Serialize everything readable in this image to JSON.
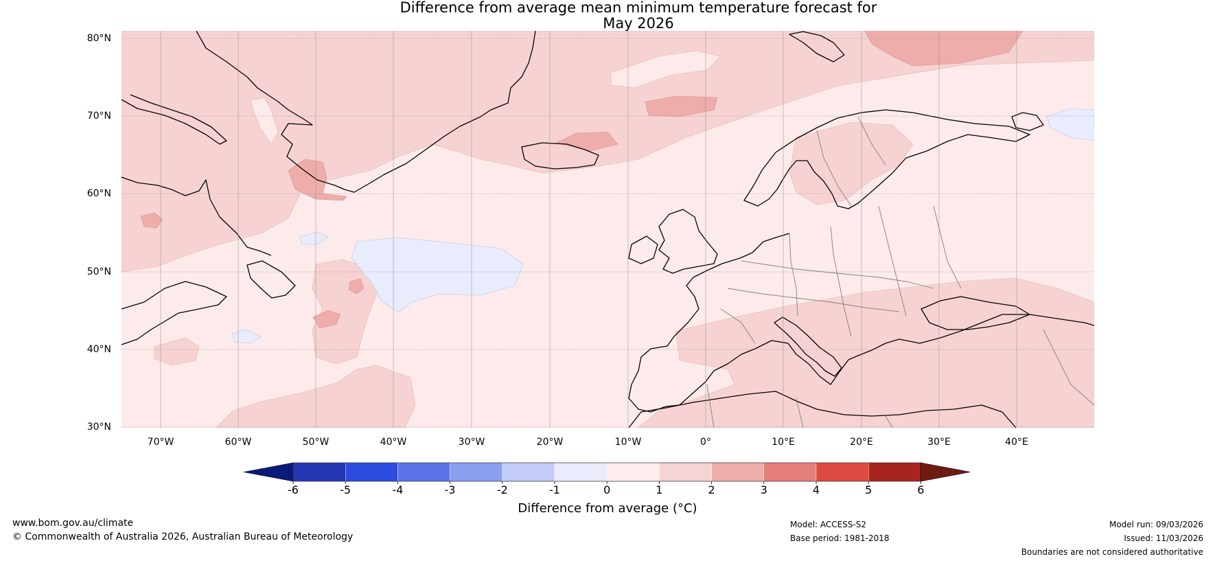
{
  "title": {
    "line1": "Difference from average mean minimum temperature forecast for",
    "line2": "May 2026"
  },
  "map": {
    "lat_labels": [
      "80°N",
      "70°N",
      "60°N",
      "50°N",
      "40°N",
      "30°N"
    ],
    "lon_labels": [
      "70°W",
      "60°W",
      "50°W",
      "40°W",
      "30°W",
      "20°W",
      "10°W",
      "0°",
      "10°E",
      "20°E",
      "30°E",
      "40°E"
    ],
    "colors": {
      "land_outline": "#000000",
      "border": "#808080",
      "gridline": "#8c8c8c",
      "frame": "#ffffff"
    }
  },
  "colorbar": {
    "ticks": [
      "-6",
      "-5",
      "-4",
      "-3",
      "-2",
      "-1",
      "0",
      "1",
      "2",
      "3",
      "4",
      "5",
      "6"
    ],
    "label": "Difference from average (°C)",
    "colors": [
      "#0a1a7a",
      "#2438b4",
      "#2c4ce0",
      "#5b74e8",
      "#8c9ef0",
      "#c2cbf5",
      "#e8ecfc",
      "#fdeceb",
      "#f6d3d2",
      "#eeadab",
      "#e67e79",
      "#dc4b40",
      "#a8241f",
      "#701a15"
    ]
  },
  "footer": {
    "website": "www.bom.gov.au/climate",
    "copyright": "© Commonwealth of Australia 2026, Australian Bureau of Meteorology",
    "model": "Model: ACCESS-S2",
    "base_period": "Base period: 1981-2018",
    "model_run": "Model run: 09/03/2026",
    "issued": "Issued: 11/03/2026",
    "disclaimer": "Boundaries are not considered authoritative"
  }
}
